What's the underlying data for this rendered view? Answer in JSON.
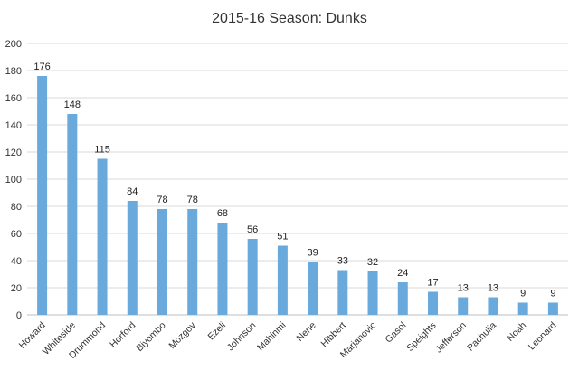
{
  "chart_data": {
    "type": "bar",
    "title": "2015-16 Season: Dunks",
    "xlabel": "",
    "ylabel": "",
    "categories": [
      "Howard",
      "Whiteside",
      "Drummond",
      "Horford",
      "Biyombo",
      "Mozgov",
      "Ezeli",
      "Johnson",
      "Mahinmi",
      "Nene",
      "Hibbert",
      "Marjanovic",
      "Gasol",
      "Speights",
      "Jefferson",
      "Pachulia",
      "Noah",
      "Leonard"
    ],
    "values": [
      176,
      148,
      115,
      84,
      78,
      78,
      68,
      56,
      51,
      39,
      33,
      32,
      24,
      17,
      13,
      13,
      9,
      9
    ],
    "data_labels": [
      "176",
      "148",
      "115",
      "84",
      "78",
      "78",
      "68",
      "56",
      "51",
      "39",
      "33",
      "32",
      "24",
      "17",
      "13",
      "13",
      "9",
      "9"
    ],
    "y_ticks": [
      0,
      20,
      40,
      60,
      80,
      100,
      120,
      140,
      160,
      180,
      200
    ],
    "y_tick_labels": [
      "0",
      "20",
      "40",
      "60",
      "80",
      "100",
      "120",
      "140",
      "160",
      "180",
      "200"
    ],
    "ylim": [
      0,
      200
    ],
    "grid": true,
    "legend": "none",
    "colors": {
      "bar": "#6aa9dc",
      "grid": "#d9d9d9",
      "text": "#333333"
    }
  }
}
